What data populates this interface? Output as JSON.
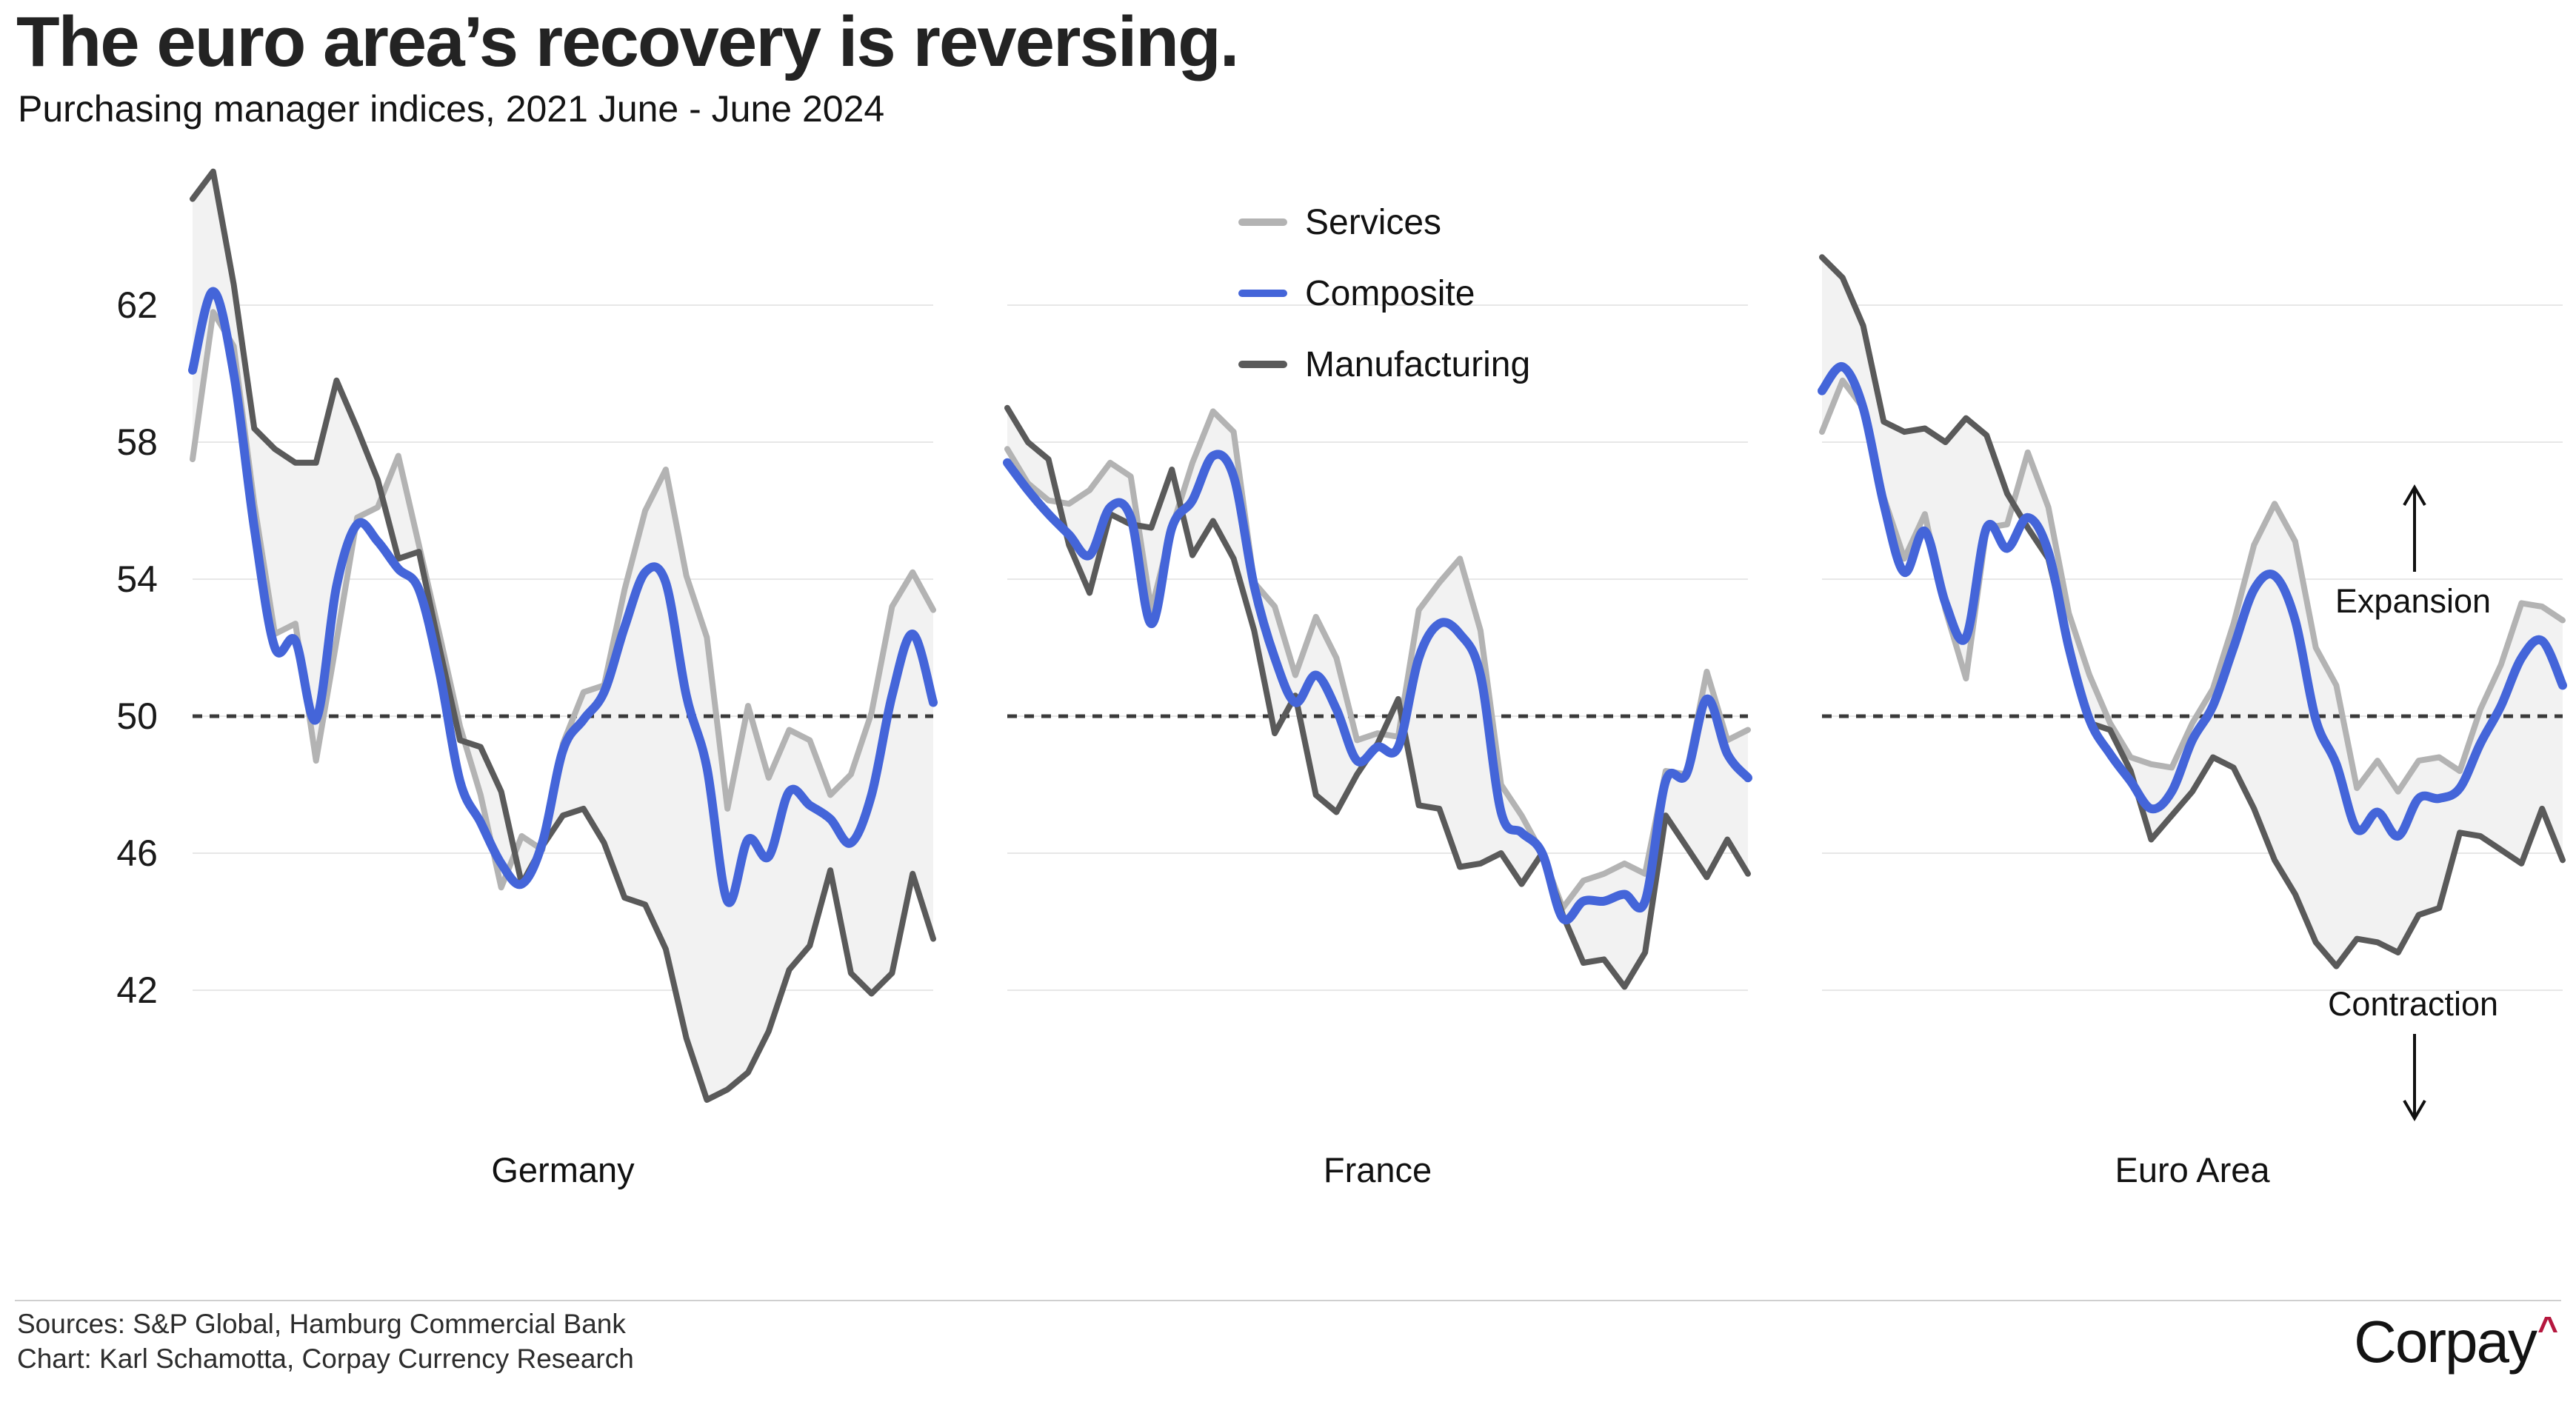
{
  "header": {
    "title": "The euro area’s recovery is reversing.",
    "subtitle": "Purchasing manager indices, 2021 June - June 2024"
  },
  "legend": {
    "items": [
      {
        "label": "Services",
        "color": "#b3b3b3"
      },
      {
        "label": "Composite",
        "color": "#4465d9"
      },
      {
        "label": "Manufacturing",
        "color": "#5a5a5a"
      }
    ]
  },
  "axis": {
    "ticks": [
      62,
      58,
      54,
      50,
      46,
      42
    ],
    "reference_value": 50
  },
  "annotations": {
    "expansion": "Expansion",
    "contraction": "Contraction"
  },
  "footer": {
    "sources": "Sources: S&P Global, Hamburg Commercial Bank",
    "credit": "Chart: Karl Schamotta, Corpay Currency Research",
    "logo_text": "Corpay",
    "logo_caret": "^",
    "logo_caret_color": "#b5173e"
  },
  "style": {
    "gridline_color": "#e7e7e7",
    "reference_line_color": "#3a3a3a",
    "band_fill_color": "#f2f2f2"
  },
  "chart_data": [
    {
      "type": "line",
      "title": "Germany",
      "ylim": [
        38,
        66
      ],
      "x": [
        "2021-06",
        "2021-07",
        "2021-08",
        "2021-09",
        "2021-10",
        "2021-11",
        "2021-12",
        "2022-01",
        "2022-02",
        "2022-03",
        "2022-04",
        "2022-05",
        "2022-06",
        "2022-07",
        "2022-08",
        "2022-09",
        "2022-10",
        "2022-11",
        "2022-12",
        "2023-01",
        "2023-02",
        "2023-03",
        "2023-04",
        "2023-05",
        "2023-06",
        "2023-07",
        "2023-08",
        "2023-09",
        "2023-10",
        "2023-11",
        "2023-12",
        "2024-01",
        "2024-02",
        "2024-03",
        "2024-04",
        "2024-05",
        "2024-06"
      ],
      "series": [
        {
          "name": "Services",
          "color": "#b3b3b3",
          "smooth": false,
          "values": [
            57.5,
            61.8,
            60.8,
            56.2,
            52.4,
            52.7,
            48.7,
            52.2,
            55.8,
            56.1,
            57.6,
            55.0,
            52.4,
            49.7,
            47.7,
            45.0,
            46.5,
            46.1,
            49.2,
            50.7,
            50.9,
            53.7,
            56.0,
            57.2,
            54.1,
            52.3,
            47.3,
            50.3,
            48.2,
            49.6,
            49.3,
            47.7,
            48.3,
            50.1,
            53.2,
            54.2,
            53.1
          ]
        },
        {
          "name": "Composite",
          "color": "#4465d9",
          "smooth": true,
          "values": [
            60.1,
            62.4,
            60.0,
            55.5,
            52.0,
            52.2,
            49.9,
            53.8,
            55.6,
            55.1,
            54.3,
            53.7,
            51.3,
            48.1,
            46.9,
            45.7,
            45.1,
            46.3,
            49.0,
            49.9,
            50.7,
            52.6,
            54.2,
            53.9,
            50.6,
            48.5,
            44.6,
            46.4,
            45.9,
            47.8,
            47.4,
            47.0,
            46.3,
            47.7,
            50.6,
            52.4,
            50.4
          ]
        },
        {
          "name": "Manufacturing",
          "color": "#5a5a5a",
          "smooth": false,
          "values": [
            65.1,
            65.9,
            62.6,
            58.4,
            57.8,
            57.4,
            57.4,
            59.8,
            58.4,
            56.9,
            54.6,
            54.8,
            52.0,
            49.3,
            49.1,
            47.8,
            45.1,
            46.2,
            47.1,
            47.3,
            46.3,
            44.7,
            44.5,
            43.2,
            40.6,
            38.8,
            39.1,
            39.6,
            40.8,
            42.6,
            43.3,
            45.5,
            42.5,
            41.9,
            42.5,
            45.4,
            43.5
          ]
        }
      ]
    },
    {
      "type": "line",
      "title": "France",
      "ylim": [
        38,
        66
      ],
      "x": [
        "2021-06",
        "2021-07",
        "2021-08",
        "2021-09",
        "2021-10",
        "2021-11",
        "2021-12",
        "2022-01",
        "2022-02",
        "2022-03",
        "2022-04",
        "2022-05",
        "2022-06",
        "2022-07",
        "2022-08",
        "2022-09",
        "2022-10",
        "2022-11",
        "2022-12",
        "2023-01",
        "2023-02",
        "2023-03",
        "2023-04",
        "2023-05",
        "2023-06",
        "2023-07",
        "2023-08",
        "2023-09",
        "2023-10",
        "2023-11",
        "2023-12",
        "2024-01",
        "2024-02",
        "2024-03",
        "2024-04",
        "2024-05",
        "2024-06"
      ],
      "series": [
        {
          "name": "Services",
          "color": "#b3b3b3",
          "smooth": false,
          "values": [
            57.8,
            56.8,
            56.3,
            56.2,
            56.6,
            57.4,
            57.0,
            53.1,
            55.5,
            57.4,
            58.9,
            58.3,
            53.9,
            53.2,
            51.2,
            52.9,
            51.7,
            49.3,
            49.5,
            49.4,
            53.1,
            53.9,
            54.6,
            52.5,
            48.0,
            47.1,
            46.0,
            44.4,
            45.2,
            45.4,
            45.7,
            45.4,
            48.4,
            48.3,
            51.3,
            49.3,
            49.6
          ]
        },
        {
          "name": "Composite",
          "color": "#4465d9",
          "smooth": true,
          "values": [
            57.4,
            56.6,
            55.9,
            55.3,
            54.7,
            56.1,
            55.8,
            52.7,
            55.5,
            56.3,
            57.6,
            57.0,
            53.8,
            51.7,
            50.4,
            51.2,
            50.2,
            48.7,
            49.1,
            49.1,
            51.7,
            52.7,
            52.4,
            51.2,
            47.2,
            46.6,
            46.0,
            44.1,
            44.6,
            44.6,
            44.8,
            44.6,
            48.1,
            48.3,
            50.5,
            48.9,
            48.2
          ]
        },
        {
          "name": "Manufacturing",
          "color": "#5a5a5a",
          "smooth": false,
          "values": [
            59.0,
            58.0,
            57.5,
            55.0,
            53.6,
            55.9,
            55.6,
            55.5,
            57.2,
            54.7,
            55.7,
            54.6,
            52.5,
            49.5,
            50.6,
            47.7,
            47.2,
            48.3,
            49.2,
            50.5,
            47.4,
            47.3,
            45.6,
            45.7,
            46.0,
            45.1,
            46.0,
            44.2,
            42.8,
            42.9,
            42.1,
            43.1,
            47.1,
            46.2,
            45.3,
            46.4,
            45.4
          ]
        }
      ]
    },
    {
      "type": "line",
      "title": "Euro Area",
      "ylim": [
        38,
        66
      ],
      "x": [
        "2021-06",
        "2021-07",
        "2021-08",
        "2021-09",
        "2021-10",
        "2021-11",
        "2021-12",
        "2022-01",
        "2022-02",
        "2022-03",
        "2022-04",
        "2022-05",
        "2022-06",
        "2022-07",
        "2022-08",
        "2022-09",
        "2022-10",
        "2022-11",
        "2022-12",
        "2023-01",
        "2023-02",
        "2023-03",
        "2023-04",
        "2023-05",
        "2023-06",
        "2023-07",
        "2023-08",
        "2023-09",
        "2023-10",
        "2023-11",
        "2023-12",
        "2024-01",
        "2024-02",
        "2024-03",
        "2024-04",
        "2024-05",
        "2024-06"
      ],
      "series": [
        {
          "name": "Services",
          "color": "#b3b3b3",
          "smooth": false,
          "values": [
            58.3,
            59.8,
            59.0,
            56.4,
            54.6,
            55.9,
            53.1,
            51.1,
            55.5,
            55.6,
            57.7,
            56.1,
            53.0,
            51.2,
            49.8,
            48.8,
            48.6,
            48.5,
            49.8,
            50.8,
            52.7,
            55.0,
            56.2,
            55.1,
            52.0,
            50.9,
            47.9,
            48.7,
            47.8,
            48.7,
            48.8,
            48.4,
            50.2,
            51.5,
            53.3,
            53.2,
            52.8
          ]
        },
        {
          "name": "Composite",
          "color": "#4465d9",
          "smooth": true,
          "values": [
            59.5,
            60.2,
            59.0,
            56.2,
            54.2,
            55.4,
            53.3,
            52.3,
            55.5,
            54.9,
            55.8,
            54.8,
            52.0,
            49.9,
            48.9,
            48.1,
            47.3,
            47.8,
            49.3,
            50.3,
            52.0,
            53.7,
            54.1,
            52.8,
            49.9,
            48.6,
            46.7,
            47.2,
            46.5,
            47.6,
            47.6,
            47.9,
            49.2,
            50.3,
            51.7,
            52.2,
            50.9
          ]
        },
        {
          "name": "Manufacturing",
          "color": "#5a5a5a",
          "smooth": false,
          "values": [
            63.4,
            62.8,
            61.4,
            58.6,
            58.3,
            58.4,
            58.0,
            58.7,
            58.2,
            56.5,
            55.5,
            54.6,
            52.1,
            49.8,
            49.6,
            48.4,
            46.4,
            47.1,
            47.8,
            48.8,
            48.5,
            47.3,
            45.8,
            44.8,
            43.4,
            42.7,
            43.5,
            43.4,
            43.1,
            44.2,
            44.4,
            46.6,
            46.5,
            46.1,
            45.7,
            47.3,
            45.8
          ]
        }
      ]
    }
  ]
}
